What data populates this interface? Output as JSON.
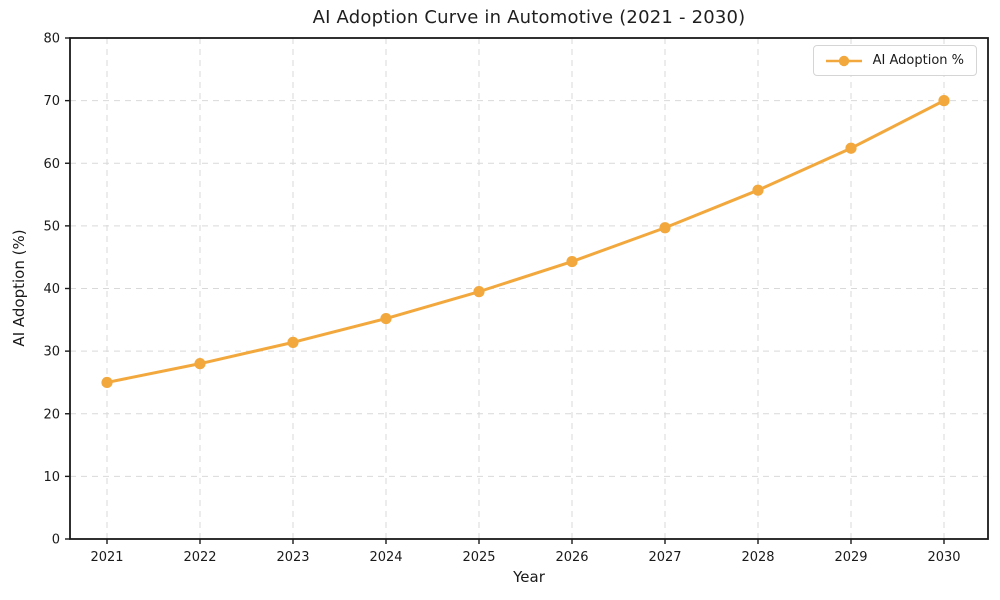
{
  "chart_data": {
    "type": "line",
    "title": "AI Adoption Curve in Automotive (2021 - 2030)",
    "xlabel": "Year",
    "ylabel": "AI Adoption (%)",
    "categories": [
      "2021",
      "2022",
      "2023",
      "2024",
      "2025",
      "2026",
      "2027",
      "2028",
      "2029",
      "2030"
    ],
    "series": [
      {
        "name": "AI Adoption %",
        "values": [
          25.0,
          28.0,
          31.4,
          35.2,
          39.5,
          44.3,
          49.7,
          55.7,
          62.4,
          70.0
        ]
      }
    ],
    "ylim": [
      0,
      80
    ],
    "yticks": [
      0,
      10,
      20,
      30,
      40,
      50,
      60,
      70,
      80
    ],
    "grid": "dashed",
    "legend_position": "upper right",
    "marker": "circle",
    "colors": {
      "line": "#F2A83D",
      "grid": "#D9D9D9",
      "spine": "#1a1a1a",
      "text": "#1a1a1a"
    }
  }
}
